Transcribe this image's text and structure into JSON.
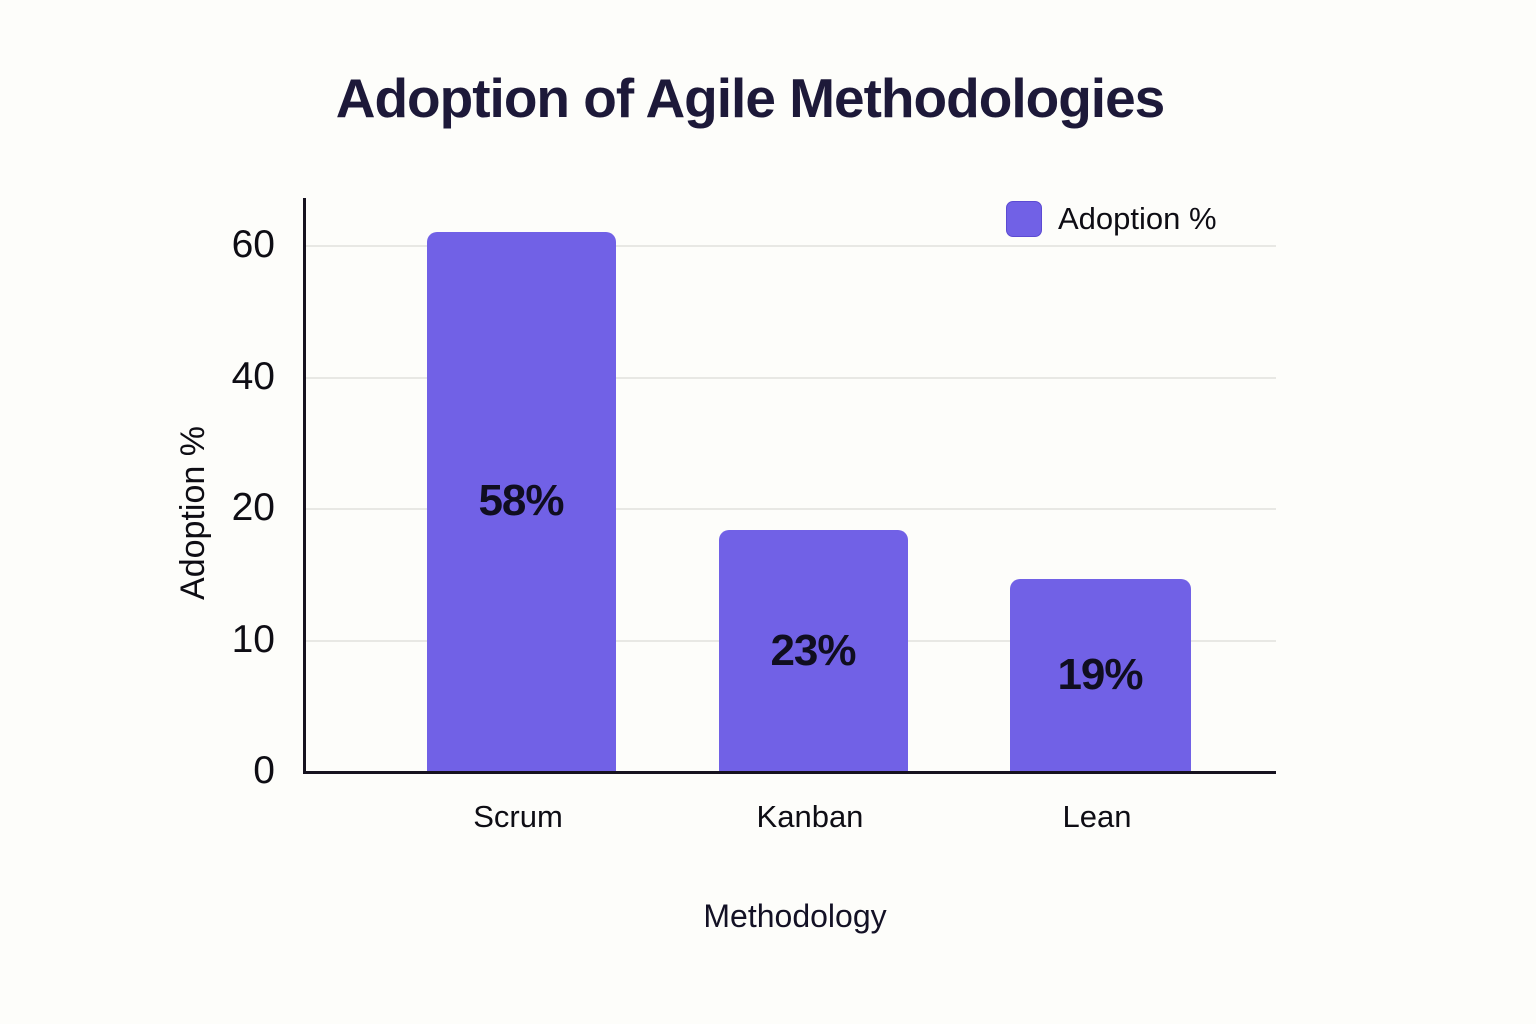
{
  "chart_data": {
    "type": "bar",
    "title": "Adoption of Agile Methodologies",
    "xlabel": "Methodology",
    "ylabel": "Adoption %",
    "categories": [
      "Scrum",
      "Kanban",
      "Lean"
    ],
    "series": [
      {
        "name": "Adoption %",
        "values": [
          58,
          23,
          19
        ]
      }
    ],
    "bar_value_labels": [
      "58%",
      "23%",
      "19%"
    ],
    "legend": {
      "label": "Adoption %",
      "position": "top-right",
      "swatch_color": "#7161e6"
    },
    "y_axis": {
      "ticks": [
        0,
        10,
        20,
        40,
        60
      ],
      "tick_spacing": "equal-pixel-nonlinear"
    },
    "bar_visual_top_axis_values": [
      62,
      18.3,
      14.6
    ],
    "grid": "horizontal",
    "colors": {
      "bar": "#7161e6",
      "grid": "#e8e8e4",
      "axis": "#16121f",
      "title_text": "#1d1939",
      "label_text": "#0e0d14",
      "background": "#fdfdfa"
    }
  }
}
